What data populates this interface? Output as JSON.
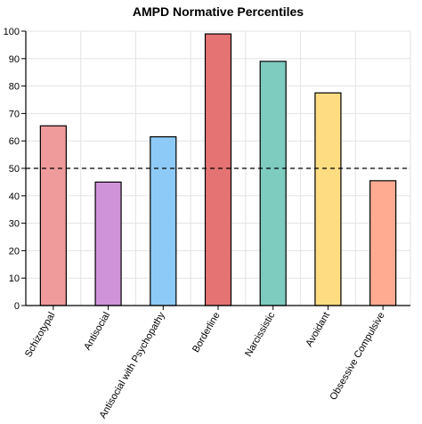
{
  "chart_data": {
    "type": "bar",
    "title": "AMPD Normative Percentiles",
    "xlabel": "",
    "ylabel": "",
    "categories": [
      "Schizotypal",
      "Antisocial",
      "Antisocial with Psychopathy",
      "Borderline",
      "Narcissistic",
      "Avoidant",
      "Obsessive Compulsive"
    ],
    "values": [
      65.5,
      45,
      61.5,
      99,
      89,
      77.5,
      45.5
    ],
    "colors": [
      "#f09b9b",
      "#cf93d9",
      "#8ecaf7",
      "#e57373",
      "#7ecbc0",
      "#fedd82",
      "#ffab91"
    ],
    "ylim": [
      0,
      100
    ],
    "yticks": [
      0,
      10,
      20,
      30,
      40,
      50,
      60,
      70,
      80,
      90,
      100
    ],
    "reference_line": 50,
    "grid": true
  }
}
